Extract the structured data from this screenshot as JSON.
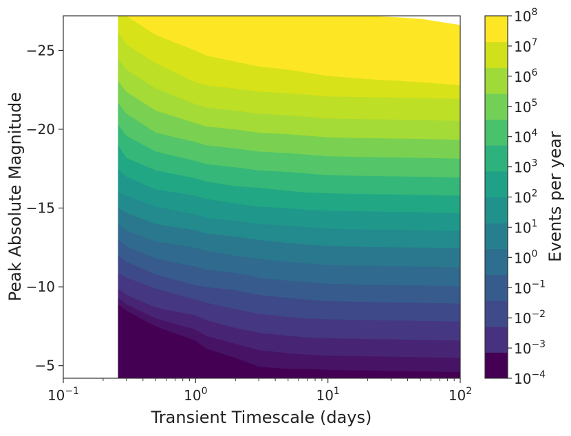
{
  "chart_data": {
    "type": "contourf",
    "title": "",
    "xlabel": "Transient Timescale (days)",
    "ylabel": "Peak Absolute Magnitude",
    "colorbar_label": "Events per year",
    "x_scale": "log",
    "xlim": [
      0.1,
      100
    ],
    "ylim": [
      -4.2,
      -27.2
    ],
    "x_ticks": [
      {
        "value": 0.1,
        "base": "10",
        "exp": "−1"
      },
      {
        "value": 1,
        "base": "10",
        "exp": "0"
      },
      {
        "value": 10,
        "base": "10",
        "exp": "1"
      },
      {
        "value": 100,
        "base": "10",
        "exp": "2"
      }
    ],
    "y_ticks": [
      {
        "value": -25,
        "label": "−25"
      },
      {
        "value": -20,
        "label": "−20"
      },
      {
        "value": -15,
        "label": "−15"
      },
      {
        "value": -10,
        "label": "−10"
      },
      {
        "value": -5,
        "label": "−5"
      }
    ],
    "colorbar_levels": [
      {
        "base": "10",
        "exp": "−4",
        "color": "#440154"
      },
      {
        "base": "10",
        "exp": "−3",
        "color": "#482878"
      },
      {
        "base": "10",
        "exp": "−2",
        "color": "#3e4989"
      },
      {
        "base": "10",
        "exp": "−1",
        "color": "#31688e"
      },
      {
        "base": "10",
        "exp": "0",
        "color": "#26828e"
      },
      {
        "base": "10",
        "exp": "1",
        "color": "#1f9e89"
      },
      {
        "base": "10",
        "exp": "2",
        "color": "#35b779"
      },
      {
        "base": "10",
        "exp": "3",
        "color": "#6ece58"
      },
      {
        "base": "10",
        "exp": "4",
        "color": "#b5de2b"
      },
      {
        "base": "10",
        "exp": "5",
        "color": "#fde725"
      },
      {
        "base": "10",
        "exp": "6",
        "color": ""
      },
      {
        "base": "10",
        "exp": "7",
        "color": ""
      },
      {
        "base": "10",
        "exp": "8",
        "color": ""
      }
    ],
    "colorbar_colors": [
      "#440154",
      "#46327e",
      "#3f4a8a",
      "#365c8d",
      "#2e6e8e",
      "#277f8e",
      "#21918c",
      "#1fa187",
      "#2db27d",
      "#4ac16d",
      "#73d056",
      "#a0da39",
      "#d0e11c",
      "#fde725"
    ],
    "contour_x": [
      0.26,
      0.3,
      0.5,
      1,
      1.2,
      2,
      3,
      5,
      7,
      10,
      20,
      50,
      100
    ],
    "boundaries": [
      [
        -8.9,
        -8.5,
        -7.5,
        -6.6,
        -6.1,
        -5.5,
        -4.95,
        -4.8,
        -4.8,
        -4.75,
        -4.7,
        -4.65,
        -4.6
      ],
      [
        -9.3,
        -8.9,
        -8.0,
        -7.3,
        -6.9,
        -6.4,
        -6.0,
        -5.8,
        -5.7,
        -5.65,
        -5.6,
        -5.55,
        -5.5
      ],
      [
        -9.9,
        -9.5,
        -8.7,
        -8.2,
        -7.9,
        -7.4,
        -7.1,
        -6.9,
        -6.8,
        -6.75,
        -6.7,
        -6.65,
        -6.6
      ],
      [
        -10.9,
        -10.6,
        -9.9,
        -9.2,
        -9.0,
        -8.6,
        -8.3,
        -8.1,
        -8.0,
        -7.95,
        -7.9,
        -7.85,
        -7.8
      ],
      [
        -12.0,
        -11.6,
        -10.8,
        -10.1,
        -10.0,
        -9.8,
        -9.5,
        -9.3,
        -9.2,
        -9.1,
        -9.05,
        -9.0,
        -8.95
      ],
      [
        -13.0,
        -12.6,
        -11.8,
        -11.3,
        -11.1,
        -10.9,
        -10.6,
        -10.4,
        -10.3,
        -10.2,
        -10.15,
        -10.1,
        -10.05
      ],
      [
        -14.0,
        -13.6,
        -12.9,
        -12.5,
        -12.3,
        -12.0,
        -11.8,
        -11.6,
        -11.5,
        -11.4,
        -11.35,
        -11.3,
        -11.25
      ],
      [
        -15.0,
        -14.7,
        -14.0,
        -13.6,
        -13.4,
        -13.2,
        -13.0,
        -12.8,
        -12.7,
        -12.6,
        -12.55,
        -12.5,
        -12.45
      ],
      [
        -16.0,
        -15.8,
        -15.1,
        -14.6,
        -14.4,
        -14.2,
        -14.0,
        -13.9,
        -13.8,
        -13.7,
        -13.65,
        -13.6,
        -13.55
      ],
      [
        -17.5,
        -17.0,
        -16.2,
        -15.8,
        -15.6,
        -15.3,
        -15.1,
        -15.0,
        -14.9,
        -14.85,
        -14.8,
        -14.75,
        -14.7
      ],
      [
        -19.0,
        -18.2,
        -17.4,
        -16.9,
        -16.7,
        -16.4,
        -16.3,
        -16.1,
        -16.0,
        -15.95,
        -15.9,
        -15.85,
        -15.8
      ],
      [
        -20.3,
        -19.6,
        -18.6,
        -18.0,
        -17.8,
        -17.6,
        -17.4,
        -17.3,
        -17.2,
        -17.1,
        -17.05,
        -17.0,
        -16.95
      ],
      [
        -21.7,
        -21.0,
        -19.8,
        -19.2,
        -19.0,
        -18.8,
        -18.6,
        -18.5,
        -18.4,
        -18.3,
        -18.25,
        -18.2,
        -18.15
      ],
      [
        -23.1,
        -22.4,
        -21.2,
        -20.4,
        -20.2,
        -20.0,
        -19.8,
        -19.7,
        -19.6,
        -19.5,
        -19.45,
        -19.4,
        -19.35
      ],
      [
        -24.5,
        -23.8,
        -22.6,
        -21.6,
        -21.4,
        -21.2,
        -21.0,
        -20.9,
        -20.8,
        -20.7,
        -20.65,
        -20.6,
        -20.55
      ],
      [
        -26.2,
        -25.4,
        -24.2,
        -23.0,
        -22.8,
        -22.6,
        -22.4,
        -22.3,
        -22.2,
        -22.1,
        -22.05,
        -22.0,
        -21.95
      ],
      [
        -27.2,
        -27.2,
        -26.0,
        -25.0,
        -24.7,
        -24.3,
        -24.0,
        -23.8,
        -23.6,
        -23.4,
        -23.2,
        -23.0,
        -22.8
      ],
      [
        -27.2,
        -27.2,
        -27.2,
        -27.2,
        -27.2,
        -27.2,
        -27.2,
        -27.2,
        -27.2,
        -27.2,
        -27.2,
        -27.0,
        -26.6
      ]
    ],
    "contour_colors": [
      "#440154",
      "#471365",
      "#482475",
      "#453781",
      "#3e4989",
      "#375b8d",
      "#306a8e",
      "#2a788e",
      "#238a8d",
      "#1f988b",
      "#22a785",
      "#35b779",
      "#54c568",
      "#7ad151",
      "#a5db36",
      "#bddf26",
      "#d8e219",
      "#fde725"
    ]
  }
}
